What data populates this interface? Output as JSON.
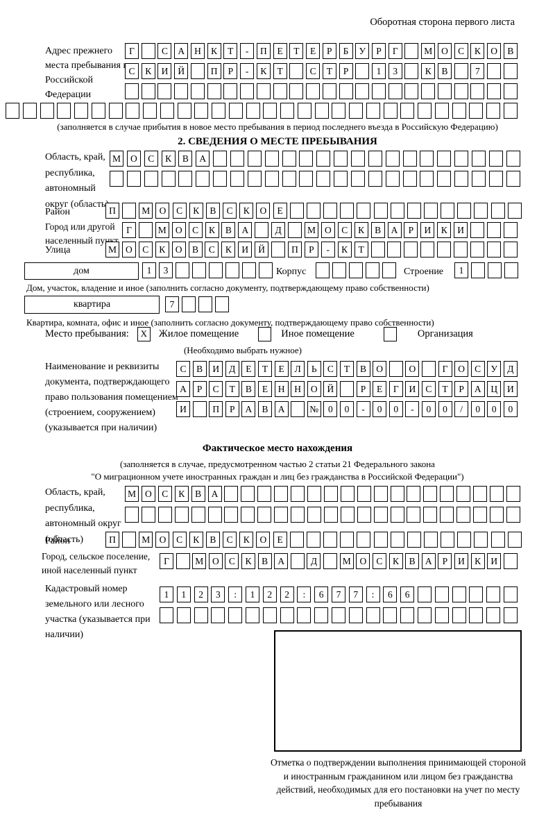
{
  "page": {
    "header_note": "Оборотная сторона первого листа"
  },
  "prev_address": {
    "label": "Адрес прежнего места пребывания в Российской Федерации",
    "rows": [
      {
        "count": 24,
        "chars": "Г САНКТ-ПЕТЕРБУРГ МОСКОВ"
      },
      {
        "count": 24,
        "chars": "СКИЙ ПР-КТ СТР 13 КВ 7"
      },
      {
        "count": 24,
        "chars": ""
      },
      {
        "count": 30,
        "chars": ""
      }
    ],
    "note": "(заполняется в случае прибытия в новое место пребывания в период последнего въезда в Российскую Федерацию)"
  },
  "section2": {
    "title": "2. СВЕДЕНИЯ О МЕСТЕ ПРЕБЫВАНИЯ",
    "region": {
      "label": "Область, край, республика, автономный округ (область)",
      "rows": [
        {
          "count": 24,
          "chars": "МОСКВА"
        },
        {
          "count": 24,
          "chars": ""
        }
      ]
    },
    "district": {
      "label": "Район",
      "row": {
        "count": 25,
        "chars": "П МОСКВСКОЕ"
      }
    },
    "city": {
      "label": "Город или другой населенный пункт",
      "row": {
        "count": 24,
        "chars": "Г МОСКВА Д МОСКВАРИКИ"
      }
    },
    "street": {
      "label": "Улица",
      "row": {
        "count": 25,
        "chars": "МОСКОВСКИЙ ПР-КТ"
      }
    },
    "house": {
      "box_label": "дом",
      "cells": {
        "count": 8,
        "chars": "13"
      },
      "korpus_label": "Корпус",
      "korpus_cells": {
        "count": 5,
        "chars": ""
      },
      "stroenie_label": "Строение",
      "stroenie_cells": {
        "count": 4,
        "chars": "1"
      },
      "note": "Дом, участок, владение и иное (заполнить согласно документу, подтверждающему право собственности)"
    },
    "apartment": {
      "box_label": "квартира",
      "cells": {
        "count": 4,
        "chars": "7"
      },
      "note": "Квартира, комната, офис и иное (заполнить согласно документу, подтверждающему право собственности)"
    },
    "stay_type": {
      "label": "Место пребывания:",
      "options": [
        {
          "label": "Жилое помещение",
          "mark": "X"
        },
        {
          "label": "Иное помещение",
          "mark": ""
        },
        {
          "label": "Организация",
          "mark": ""
        }
      ],
      "note": "(Необходимо выбрать нужное)"
    },
    "document": {
      "label": "Наименование и реквизиты документа, подтверждающего право пользования помещением (строением, сооружением) (указывается при наличии)",
      "rows": [
        {
          "count": 21,
          "chars": "СВИДЕТЕЛЬСТВО О ГОСУД"
        },
        {
          "count": 21,
          "chars": "АРСТВЕННОЙ РЕГИСТРАЦИ"
        },
        {
          "count": 21,
          "chars": "И ПРАВА №00-00-00/000"
        }
      ]
    }
  },
  "actual_location": {
    "title": "Фактическое место нахождения",
    "note_line1": "(заполняется в случае, предусмотренном частью 2 статьи 21 Федерального закона",
    "note_line2": "\"О миграционном учете иностранных граждан и лиц без гражданства в Российской Федерации\")",
    "region": {
      "label": "Область, край, республика, автономный округ (область)",
      "rows": [
        {
          "count": 24,
          "chars": "МОСКВА"
        },
        {
          "count": 24,
          "chars": ""
        }
      ]
    },
    "district": {
      "label": "Район",
      "row": {
        "count": 25,
        "chars": "П МОСКВСКОЕ"
      }
    },
    "city": {
      "label": "Город, сельское поселение, иной населенный пункт",
      "row": {
        "count": 22,
        "chars": "Г МОСКВА Д МОСКВАРИКИ"
      }
    },
    "cadastral": {
      "label": "Кадастровый номер земельного или лесного участка (указывается при наличии)",
      "rows": [
        {
          "count": 21,
          "chars": "1123:122:677:66"
        },
        {
          "count": 21,
          "chars": ""
        }
      ]
    },
    "stamp_note": "Отметка о подтверждении выполнения принимающей стороной и иностранным гражданином или лицом без гражданства действий, необходимых для его постановки на учет по месту пребывания"
  }
}
